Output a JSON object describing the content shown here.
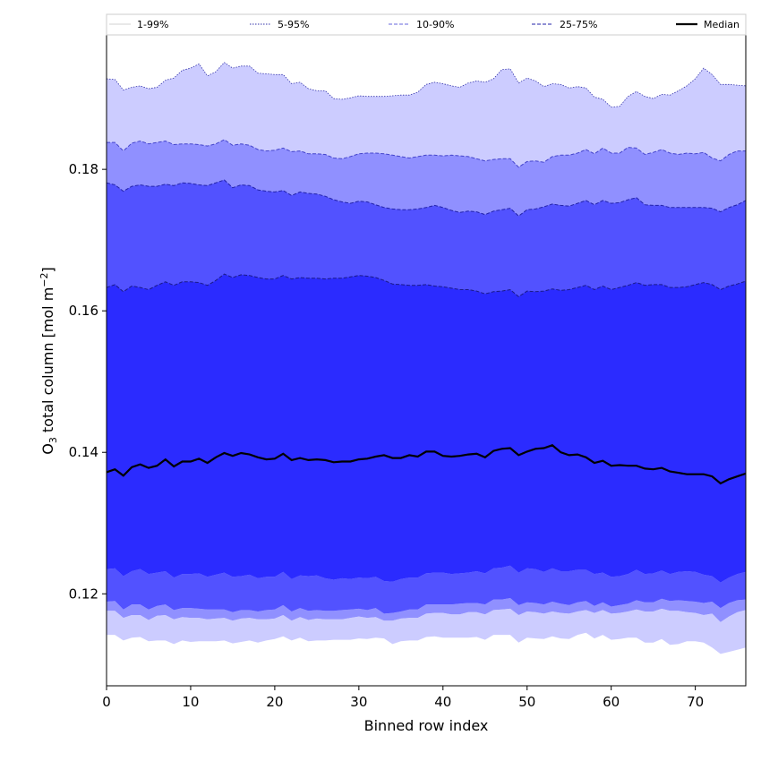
{
  "chart_data": {
    "type": "area",
    "xlabel": "Binned row index",
    "ylabel_main": "O",
    "ylabel_sub": "3",
    "ylabel_rest": " total column [mol m",
    "ylabel_sup": "−2",
    "ylabel_end": "]",
    "xlim": [
      0,
      76
    ],
    "ylim": [
      0.107,
      0.199
    ],
    "xticks": [
      0,
      10,
      20,
      30,
      40,
      50,
      60,
      70
    ],
    "yticks": [
      0.12,
      0.14,
      0.16,
      0.18
    ],
    "ytick_labels": [
      "0.12",
      "0.14",
      "0.16",
      "0.18"
    ],
    "legend_placement": "top (horizontal row)",
    "legend": [
      {
        "label": "1-99%",
        "color": "#ffffff",
        "line": "#d0d0d0",
        "style": "solid"
      },
      {
        "label": "5-95%",
        "color": "#ccccff",
        "line": "#3333aa",
        "style": "dotted"
      },
      {
        "label": "10-90%",
        "color": "#9090ff",
        "line": "#6666dd",
        "style": "dashed"
      },
      {
        "label": "25-75%",
        "color": "#5252ff",
        "line": "#2222aa",
        "style": "dashed"
      },
      {
        "label": "Median",
        "color": "#000000",
        "line": "#000000",
        "style": "solid"
      }
    ],
    "bands": [
      {
        "name": "1-99%",
        "color": "#ffffff",
        "lower_base": 0.1135,
        "upper_base": 0.201
      },
      {
        "name": "5-95%",
        "color": "#ccccff",
        "lower_base": 0.1135,
        "upper_base": 0.192
      },
      {
        "name": "10-90%",
        "color": "#9090ff",
        "lower_base": 0.1175,
        "upper_base": 0.1825
      },
      {
        "name": "25-75%",
        "color": "#5252ff",
        "lower_base": 0.1188,
        "upper_base": 0.176
      },
      {
        "name": "IQR core",
        "color": "#2b2bff",
        "lower_base": 0.1228,
        "upper_base": 0.164
      }
    ],
    "median": [
      0.1372,
      0.1376,
      0.1367,
      0.1379,
      0.1383,
      0.1378,
      0.1381,
      0.139,
      0.138,
      0.1387,
      0.1387,
      0.1391,
      0.1385,
      0.1393,
      0.1399,
      0.1395,
      0.1399,
      0.1397,
      0.1393,
      0.139,
      0.1391,
      0.1398,
      0.1389,
      0.1392,
      0.1389,
      0.139,
      0.1389,
      0.1386,
      0.1387,
      0.1387,
      0.139,
      0.1391,
      0.1394,
      0.1396,
      0.1392,
      0.1392,
      0.1396,
      0.1394,
      0.1401,
      0.1401,
      0.1395,
      0.1394,
      0.1395,
      0.1397,
      0.1398,
      0.1393,
      0.1402,
      0.1405,
      0.1406,
      0.1396,
      0.1401,
      0.1405,
      0.1406,
      0.141,
      0.14,
      0.1396,
      0.1397,
      0.1393,
      0.1385,
      0.1388,
      0.1381,
      0.1382,
      0.1381,
      0.1381,
      0.1377,
      0.1376,
      0.1378,
      0.1373,
      0.1371,
      0.1369,
      0.1369,
      0.1369,
      0.1366,
      0.1356,
      0.1362,
      0.1366,
      0.137
    ],
    "p75": [
      0.1633,
      0.1637,
      0.1627,
      0.1635,
      0.1633,
      0.163,
      0.1636,
      0.1641,
      0.1636,
      0.1641,
      0.1641,
      0.164,
      0.1636,
      0.1643,
      0.1652,
      0.1647,
      0.1651,
      0.165,
      0.1647,
      0.1645,
      0.1645,
      0.165,
      0.1645,
      0.1647,
      0.1646,
      0.1646,
      0.1645,
      0.1646,
      0.1646,
      0.1648,
      0.165,
      0.1649,
      0.1647,
      0.1643,
      0.1638,
      0.1637,
      0.1636,
      0.1636,
      0.1637,
      0.1635,
      0.1634,
      0.1632,
      0.163,
      0.163,
      0.1628,
      0.1624,
      0.1627,
      0.1628,
      0.163,
      0.162,
      0.1628,
      0.1627,
      0.1628,
      0.1631,
      0.1629,
      0.163,
      0.1633,
      0.1636,
      0.163,
      0.1635,
      0.163,
      0.1633,
      0.1636,
      0.164,
      0.1636,
      0.1637,
      0.1637,
      0.1633,
      0.1633,
      0.1634,
      0.1637,
      0.164,
      0.1637,
      0.163,
      0.1635,
      0.1638,
      0.1642
    ],
    "p90": [
      0.1781,
      0.1778,
      0.1769,
      0.1776,
      0.1778,
      0.1776,
      0.1776,
      0.1779,
      0.1777,
      0.1781,
      0.178,
      0.1778,
      0.1777,
      0.1781,
      0.1785,
      0.1774,
      0.1778,
      0.1777,
      0.1771,
      0.1769,
      0.1768,
      0.177,
      0.1763,
      0.1768,
      0.1766,
      0.1765,
      0.1762,
      0.1757,
      0.1754,
      0.1752,
      0.1755,
      0.1754,
      0.175,
      0.1746,
      0.1744,
      0.1743,
      0.1743,
      0.1744,
      0.1746,
      0.1749,
      0.1746,
      0.1742,
      0.1739,
      0.1741,
      0.174,
      0.1736,
      0.1741,
      0.1743,
      0.1745,
      0.1734,
      0.1743,
      0.1744,
      0.1747,
      0.1751,
      0.1749,
      0.1748,
      0.1752,
      0.1756,
      0.175,
      0.1756,
      0.1752,
      0.1753,
      0.1757,
      0.176,
      0.175,
      0.1749,
      0.1749,
      0.1746,
      0.1746,
      0.1746,
      0.1746,
      0.1746,
      0.1745,
      0.174,
      0.1746,
      0.175,
      0.1756
    ],
    "p95": [
      0.1838,
      0.1838,
      0.1826,
      0.1837,
      0.184,
      0.1836,
      0.1838,
      0.184,
      0.1835,
      0.1836,
      0.1836,
      0.1835,
      0.1833,
      0.1836,
      0.1842,
      0.1834,
      0.1836,
      0.1834,
      0.1828,
      0.1826,
      0.1827,
      0.183,
      0.1825,
      0.1826,
      0.1822,
      0.1822,
      0.1821,
      0.1816,
      0.1815,
      0.1818,
      0.1822,
      0.1823,
      0.1823,
      0.1822,
      0.182,
      0.1818,
      0.1816,
      0.1818,
      0.182,
      0.182,
      0.1819,
      0.182,
      0.1819,
      0.1818,
      0.1815,
      0.1812,
      0.1814,
      0.1815,
      0.1815,
      0.1803,
      0.1811,
      0.1812,
      0.181,
      0.1818,
      0.182,
      0.182,
      0.1823,
      0.1828,
      0.1822,
      0.183,
      0.1823,
      0.1823,
      0.1831,
      0.183,
      0.1821,
      0.1824,
      0.1828,
      0.1823,
      0.1821,
      0.1823,
      0.1822,
      0.1824,
      0.1816,
      0.1812,
      0.1821,
      0.1826,
      0.1826
    ],
    "p99": [
      0.1928,
      0.1927,
      0.1912,
      0.1916,
      0.1918,
      0.1914,
      0.1916,
      0.1926,
      0.1929,
      0.194,
      0.1943,
      0.1949,
      0.1932,
      0.1938,
      0.1951,
      0.1943,
      0.1946,
      0.1946,
      0.1936,
      0.1935,
      0.1934,
      0.1934,
      0.1921,
      0.1923,
      0.1914,
      0.1911,
      0.1911,
      0.19,
      0.1899,
      0.1901,
      0.1904,
      0.1903,
      0.1903,
      0.1903,
      0.1904,
      0.1905,
      0.1905,
      0.1909,
      0.192,
      0.1923,
      0.1921,
      0.1918,
      0.1916,
      0.1922,
      0.1925,
      0.1923,
      0.1928,
      0.1941,
      0.1942,
      0.1922,
      0.1929,
      0.1925,
      0.1917,
      0.1921,
      0.192,
      0.1915,
      0.1917,
      0.1915,
      0.1902,
      0.1899,
      0.1888,
      0.1889,
      0.1903,
      0.191,
      0.1903,
      0.19,
      0.1906,
      0.1905,
      0.1911,
      0.1918,
      0.1928,
      0.1943,
      0.1934,
      0.192,
      0.192,
      0.1919,
      0.1918
    ],
    "p25": [
      0.1235,
      0.1236,
      0.1225,
      0.1232,
      0.1235,
      0.1228,
      0.123,
      0.1232,
      0.1223,
      0.1228,
      0.1228,
      0.1229,
      0.1224,
      0.1227,
      0.123,
      0.1224,
      0.1225,
      0.1227,
      0.1222,
      0.1224,
      0.1224,
      0.1231,
      0.1221,
      0.1226,
      0.1225,
      0.1226,
      0.1222,
      0.122,
      0.1222,
      0.1221,
      0.1223,
      0.1222,
      0.1224,
      0.1218,
      0.1217,
      0.1221,
      0.1223,
      0.1223,
      0.1229,
      0.123,
      0.123,
      0.1228,
      0.1229,
      0.123,
      0.1232,
      0.1229,
      0.1236,
      0.1237,
      0.124,
      0.123,
      0.1236,
      0.1235,
      0.1231,
      0.1236,
      0.1232,
      0.1232,
      0.1234,
      0.1234,
      0.1228,
      0.123,
      0.1224,
      0.1225,
      0.1228,
      0.1234,
      0.1228,
      0.1229,
      0.1233,
      0.1228,
      0.1231,
      0.1232,
      0.1231,
      0.1227,
      0.1225,
      0.1216,
      0.1223,
      0.1228,
      0.1231
    ],
    "p10": [
      0.1189,
      0.119,
      0.1178,
      0.1185,
      0.1185,
      0.1178,
      0.1183,
      0.1185,
      0.1177,
      0.118,
      0.118,
      0.1179,
      0.1178,
      0.1178,
      0.1178,
      0.1174,
      0.1177,
      0.1177,
      0.1175,
      0.1177,
      0.1178,
      0.1184,
      0.1175,
      0.118,
      0.1176,
      0.1177,
      0.1176,
      0.1176,
      0.1177,
      0.1178,
      0.1179,
      0.1177,
      0.118,
      0.1172,
      0.1173,
      0.1175,
      0.1178,
      0.1178,
      0.1185,
      0.1185,
      0.1185,
      0.1185,
      0.1186,
      0.1187,
      0.1187,
      0.1185,
      0.1192,
      0.1192,
      0.1194,
      0.1184,
      0.1188,
      0.1187,
      0.1185,
      0.1189,
      0.1186,
      0.1184,
      0.1188,
      0.119,
      0.1183,
      0.1188,
      0.1182,
      0.1184,
      0.1186,
      0.1191,
      0.1188,
      0.1188,
      0.1193,
      0.119,
      0.1191,
      0.119,
      0.1189,
      0.1187,
      0.1189,
      0.118,
      0.1187,
      0.1191,
      0.1192
    ],
    "p5": [
      0.1176,
      0.1176,
      0.1166,
      0.117,
      0.117,
      0.1163,
      0.1169,
      0.117,
      0.1164,
      0.1167,
      0.1166,
      0.1166,
      0.1164,
      0.1165,
      0.1166,
      0.1162,
      0.1165,
      0.1166,
      0.1164,
      0.1164,
      0.1165,
      0.117,
      0.1162,
      0.1167,
      0.1163,
      0.1165,
      0.1164,
      0.1164,
      0.1164,
      0.1166,
      0.1168,
      0.1166,
      0.1167,
      0.1162,
      0.1162,
      0.1165,
      0.1166,
      0.1166,
      0.1172,
      0.1173,
      0.1173,
      0.1171,
      0.1171,
      0.1174,
      0.1174,
      0.1171,
      0.1177,
      0.1178,
      0.1179,
      0.117,
      0.1175,
      0.1174,
      0.1172,
      0.1175,
      0.1173,
      0.1172,
      0.1175,
      0.1177,
      0.1173,
      0.1177,
      0.1172,
      0.1173,
      0.1175,
      0.1178,
      0.1175,
      0.1175,
      0.1179,
      0.1176,
      0.1176,
      0.1174,
      0.1173,
      0.117,
      0.1172,
      0.116,
      0.1168,
      0.1174,
      0.1177
    ],
    "p1": [
      0.1142,
      0.1142,
      0.1134,
      0.1138,
      0.1139,
      0.1133,
      0.1134,
      0.1134,
      0.1129,
      0.1134,
      0.1132,
      0.1133,
      0.1133,
      0.1133,
      0.1134,
      0.113,
      0.1132,
      0.1134,
      0.1131,
      0.1134,
      0.1136,
      0.114,
      0.1134,
      0.1138,
      0.1133,
      0.1134,
      0.1134,
      0.1135,
      0.1135,
      0.1135,
      0.1137,
      0.1136,
      0.1138,
      0.1137,
      0.1129,
      0.1133,
      0.1134,
      0.1134,
      0.1139,
      0.114,
      0.1138,
      0.1138,
      0.1138,
      0.1138,
      0.1139,
      0.1135,
      0.1142,
      0.1142,
      0.1142,
      0.1131,
      0.1138,
      0.1137,
      0.1136,
      0.114,
      0.1137,
      0.1136,
      0.1142,
      0.1145,
      0.1137,
      0.1142,
      0.1135,
      0.1136,
      0.1138,
      0.1138,
      0.1131,
      0.1131,
      0.1136,
      0.1128,
      0.1129,
      0.1133,
      0.1133,
      0.1131,
      0.1124,
      0.1115,
      0.1118,
      0.1121,
      0.1124
    ]
  }
}
